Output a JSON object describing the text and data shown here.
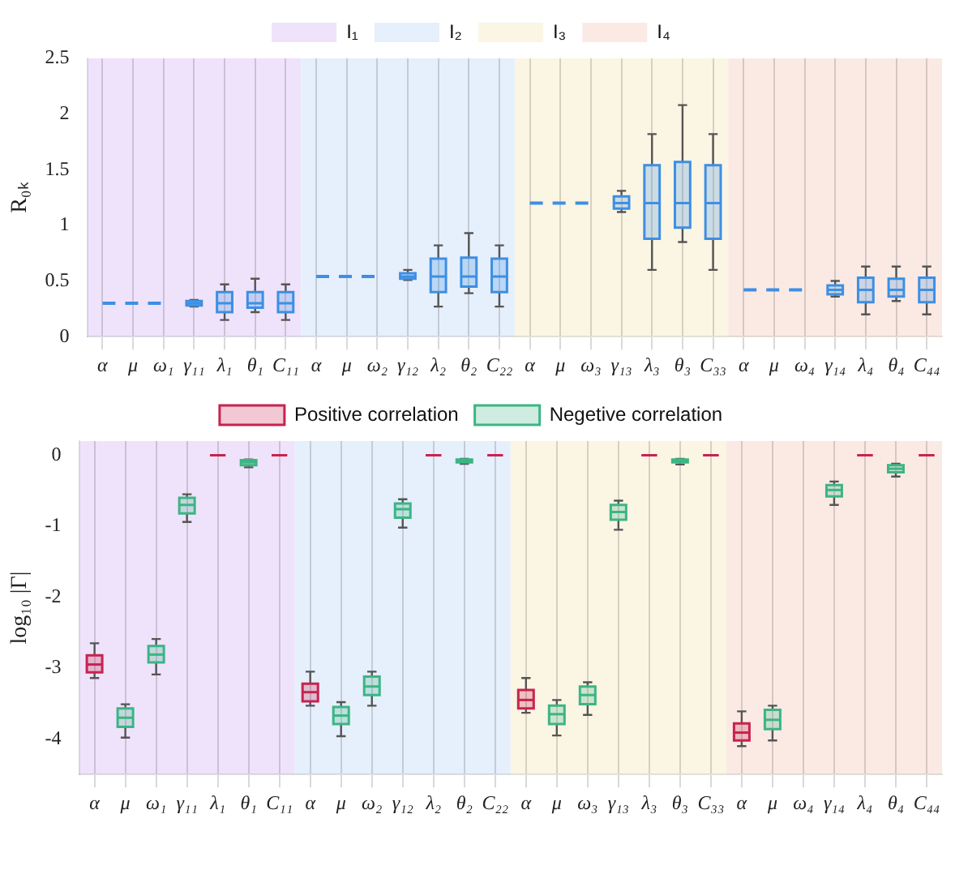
{
  "chart_data": [
    {
      "type": "box",
      "ylabel": "R₀ₖ",
      "categories": [
        "α",
        "μ",
        "ω₁",
        "γ₁₁",
        "λ₁",
        "θ₁",
        "C₁₁",
        "α",
        "μ",
        "ω₂",
        "γ₁₂",
        "λ₂",
        "θ₂",
        "C₂₂",
        "α",
        "μ",
        "ω₃",
        "γ₁₃",
        "λ₃",
        "θ₃",
        "C₃₃",
        "α",
        "μ",
        "ω₄",
        "γ₁₄",
        "λ₄",
        "θ₄",
        "C₄₄"
      ],
      "ylim": [
        0,
        2.5
      ],
      "yticks": [
        0,
        0.5,
        1,
        1.5,
        2,
        2.5
      ],
      "grid": "x",
      "legend": "top",
      "line_style": "dashed",
      "marker": "none",
      "bands": [
        {
          "axis": "x",
          "from": "α",
          "to": "C₁₁",
          "label": "I₁",
          "color": "#efe3fb"
        },
        {
          "axis": "x",
          "from": "C₁₁",
          "to": "C₂₂",
          "label": "I₂",
          "color": "#e6effc"
        },
        {
          "axis": "x",
          "from": "C₂₂",
          "to": "C₃₃",
          "label": "I₃",
          "color": "#fbf5e4"
        },
        {
          "axis": "x",
          "from": "C₃₃",
          "to": "C₄₄",
          "label": "I₄",
          "color": "#fbeae4"
        }
      ],
      "series": [
        {
          "type": "line",
          "color": "#3d8fe3",
          "values": [
            0.3,
            0.3,
            0.3,
            null,
            null,
            null,
            null,
            0.54,
            0.54,
            0.54,
            null,
            null,
            null,
            null,
            1.2,
            1.2,
            1.2,
            null,
            null,
            null,
            null,
            0.42,
            0.42,
            0.42,
            null,
            null,
            null,
            null
          ]
        },
        {
          "type": "box",
          "color": "#3d8fe3",
          "boxes": [
            null,
            null,
            null,
            {
              "low": 0.27,
              "q1": 0.28,
              "median": 0.3,
              "q3": 0.32,
              "high": 0.33
            },
            {
              "low": 0.15,
              "q1": 0.22,
              "median": 0.3,
              "q3": 0.4,
              "high": 0.47
            },
            {
              "low": 0.22,
              "q1": 0.26,
              "median": 0.3,
              "q3": 0.4,
              "high": 0.52
            },
            {
              "low": 0.15,
              "q1": 0.22,
              "median": 0.3,
              "q3": 0.4,
              "high": 0.47
            },
            null,
            null,
            null,
            {
              "low": 0.51,
              "q1": 0.52,
              "median": 0.54,
              "q3": 0.57,
              "high": 0.6
            },
            {
              "low": 0.27,
              "q1": 0.4,
              "median": 0.54,
              "q3": 0.7,
              "high": 0.82
            },
            {
              "low": 0.39,
              "q1": 0.45,
              "median": 0.54,
              "q3": 0.71,
              "high": 0.93
            },
            {
              "low": 0.27,
              "q1": 0.4,
              "median": 0.54,
              "q3": 0.7,
              "high": 0.82
            },
            null,
            null,
            null,
            {
              "low": 1.12,
              "q1": 1.15,
              "median": 1.2,
              "q3": 1.26,
              "high": 1.31
            },
            {
              "low": 0.6,
              "q1": 0.88,
              "median": 1.2,
              "q3": 1.54,
              "high": 1.82
            },
            {
              "low": 0.85,
              "q1": 0.98,
              "median": 1.2,
              "q3": 1.57,
              "high": 2.08
            },
            {
              "low": 0.6,
              "q1": 0.88,
              "median": 1.2,
              "q3": 1.54,
              "high": 1.82
            },
            null,
            null,
            null,
            {
              "low": 0.36,
              "q1": 0.38,
              "median": 0.42,
              "q3": 0.46,
              "high": 0.5
            },
            {
              "low": 0.2,
              "q1": 0.31,
              "median": 0.42,
              "q3": 0.53,
              "high": 0.63
            },
            {
              "low": 0.32,
              "q1": 0.36,
              "median": 0.42,
              "q3": 0.52,
              "high": 0.63
            },
            {
              "low": 0.2,
              "q1": 0.31,
              "median": 0.42,
              "q3": 0.53,
              "high": 0.63
            }
          ]
        }
      ]
    },
    {
      "type": "box",
      "ylabel": "log₁₀ |Γ|",
      "categories": [
        "α",
        "μ",
        "ω₁",
        "γ₁₁",
        "λ₁",
        "θ₁",
        "C₁₁",
        "α",
        "μ",
        "ω₂",
        "γ₁₂",
        "λ₂",
        "θ₂",
        "C₂₂",
        "α",
        "μ",
        "ω₃",
        "γ₁₃",
        "λ₃",
        "θ₃",
        "C₃₃",
        "α",
        "μ",
        "ω₄",
        "γ₁₄",
        "λ₄",
        "θ₄",
        "C₄₄"
      ],
      "ylim": [
        -4.5,
        0.2
      ],
      "yticks": [
        -4,
        -3,
        -2,
        -1,
        0
      ],
      "grid": "x",
      "legend": "top",
      "bands": [
        {
          "axis": "x",
          "from": "α",
          "to": "C₁₁",
          "color": "#efe3fb"
        },
        {
          "axis": "x",
          "from": "C₁₁",
          "to": "C₂₂",
          "color": "#e6effc"
        },
        {
          "axis": "x",
          "from": "C₂₂",
          "to": "C₃₃",
          "color": "#fbf5e4"
        },
        {
          "axis": "x",
          "from": "C₃₃",
          "to": "C₄₄",
          "color": "#fbeae4"
        }
      ],
      "series": [
        {
          "type": "box",
          "name": "Positive correlation",
          "color": "#c8234e",
          "boxes": [
            {
              "low": -3.14,
              "q1": -3.06,
              "median": -2.95,
              "q3": -2.82,
              "high": -2.65
            },
            null,
            null,
            null,
            {
              "low": 0,
              "q1": 0,
              "median": 0,
              "q3": 0,
              "high": 0
            },
            null,
            {
              "low": 0,
              "q1": 0,
              "median": 0,
              "q3": 0,
              "high": 0
            },
            {
              "low": -3.53,
              "q1": -3.47,
              "median": -3.34,
              "q3": -3.22,
              "high": -3.05
            },
            null,
            null,
            null,
            {
              "low": 0,
              "q1": 0,
              "median": 0,
              "q3": 0,
              "high": 0
            },
            null,
            {
              "low": 0,
              "q1": 0,
              "median": 0,
              "q3": 0,
              "high": 0
            },
            {
              "low": -3.63,
              "q1": -3.57,
              "median": -3.45,
              "q3": -3.31,
              "high": -3.14
            },
            null,
            null,
            null,
            {
              "low": 0,
              "q1": 0,
              "median": 0,
              "q3": 0,
              "high": 0
            },
            null,
            {
              "low": 0,
              "q1": 0,
              "median": 0,
              "q3": 0,
              "high": 0
            },
            {
              "low": -4.1,
              "q1": -4.02,
              "median": -3.91,
              "q3": -3.78,
              "high": -3.61
            },
            null,
            null,
            null,
            {
              "low": 0,
              "q1": 0,
              "median": 0,
              "q3": 0,
              "high": 0
            },
            null,
            {
              "low": 0,
              "q1": 0,
              "median": 0,
              "q3": 0,
              "high": 0
            }
          ]
        },
        {
          "type": "box",
          "name": "Negetive correlation",
          "color": "#3cb584",
          "boxes": [
            null,
            {
              "low": -3.98,
              "q1": -3.83,
              "median": -3.7,
              "q3": -3.57,
              "high": -3.51
            },
            {
              "low": -3.09,
              "q1": -2.92,
              "median": -2.81,
              "q3": -2.69,
              "high": -2.59
            },
            {
              "low": -0.94,
              "q1": -0.82,
              "median": -0.7,
              "q3": -0.6,
              "high": -0.55
            },
            null,
            {
              "low": -0.17,
              "q1": -0.14,
              "median": -0.1,
              "q3": -0.07,
              "high": -0.06
            },
            null,
            null,
            {
              "low": -3.96,
              "q1": -3.79,
              "median": -3.67,
              "q3": -3.55,
              "high": -3.48
            },
            {
              "low": -3.53,
              "q1": -3.38,
              "median": -3.26,
              "q3": -3.12,
              "high": -3.05
            },
            {
              "low": -1.02,
              "q1": -0.88,
              "median": -0.76,
              "q3": -0.68,
              "high": -0.62
            },
            null,
            {
              "low": -0.12,
              "q1": -0.1,
              "median": -0.08,
              "q3": -0.06,
              "high": -0.05
            },
            null,
            null,
            {
              "low": -3.95,
              "q1": -3.79,
              "median": -3.65,
              "q3": -3.53,
              "high": -3.45
            },
            {
              "low": -3.66,
              "q1": -3.51,
              "median": -3.38,
              "q3": -3.26,
              "high": -3.2
            },
            {
              "low": -1.05,
              "q1": -0.91,
              "median": -0.8,
              "q3": -0.7,
              "high": -0.64
            },
            null,
            {
              "low": -0.13,
              "q1": -0.1,
              "median": -0.07,
              "q3": -0.06,
              "high": -0.05
            },
            null,
            null,
            {
              "low": -4.02,
              "q1": -3.86,
              "median": -3.73,
              "q3": -3.59,
              "high": -3.53
            },
            null,
            {
              "low": -0.7,
              "q1": -0.58,
              "median": -0.49,
              "q3": -0.42,
              "high": -0.37
            },
            null,
            {
              "low": -0.3,
              "q1": -0.24,
              "median": -0.19,
              "q3": -0.14,
              "high": -0.12
            },
            null
          ]
        }
      ]
    }
  ]
}
